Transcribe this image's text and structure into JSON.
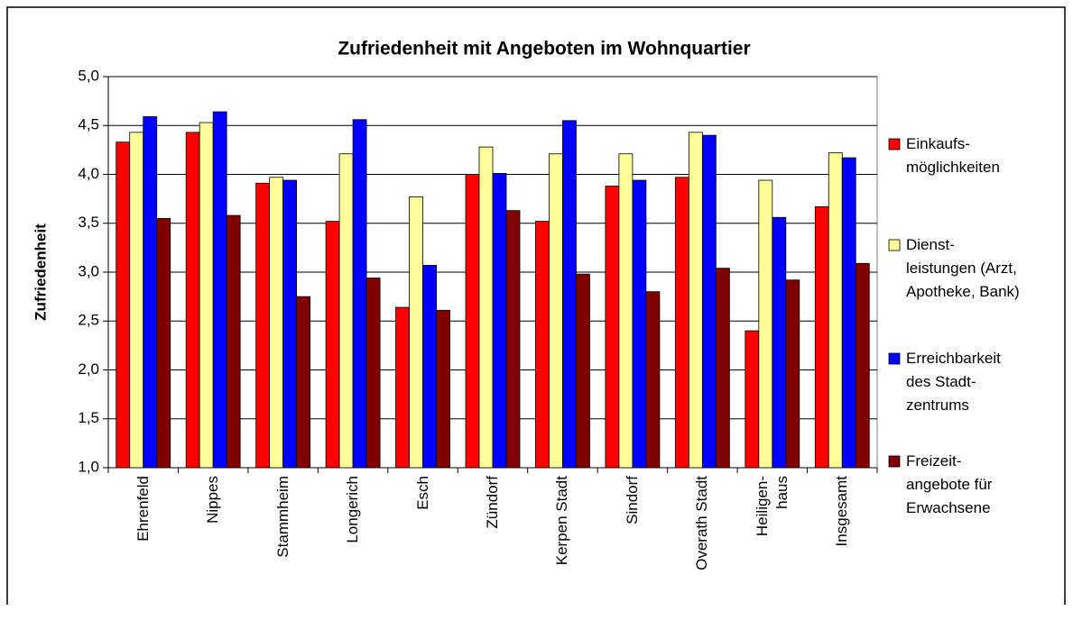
{
  "chart_data": {
    "type": "bar",
    "title": "Zufriedenheit mit Angeboten im Wohnquartier",
    "y_label": "Zufriedenheit",
    "categories": [
      "Ehrenfeld",
      "Nippes",
      "Stammheim",
      "Longerich",
      "Esch",
      "Zündorf",
      "Kerpen Stadt",
      "Sindorf",
      "Overath Stadt",
      "Heiligen-\nhaus",
      "Insgesamt"
    ],
    "series": [
      {
        "name": "Einkaufs-\nmöglichkeiten",
        "color": "#ff0000",
        "values": [
          4.33,
          4.43,
          3.91,
          3.52,
          2.64,
          4.0,
          3.52,
          3.88,
          3.97,
          2.4,
          3.67
        ]
      },
      {
        "name": "Dienst-\nleistungen (Arzt,\nApotheke, Bank)",
        "color": "#ffff99",
        "values": [
          4.43,
          4.53,
          3.97,
          4.21,
          3.77,
          4.28,
          4.21,
          4.21,
          4.43,
          3.94,
          4.22
        ]
      },
      {
        "name": "Erreichbarkeit\ndes Stadt-\nzentrums",
        "color": "#0000ff",
        "values": [
          4.59,
          4.64,
          3.94,
          4.56,
          3.07,
          4.01,
          4.55,
          3.94,
          4.4,
          3.56,
          4.17
        ]
      },
      {
        "name": "Freizeit-\nangebote für\nErwachsene",
        "color": "#800000",
        "values": [
          3.55,
          3.58,
          2.75,
          2.94,
          2.61,
          3.63,
          2.98,
          2.8,
          3.04,
          2.92,
          3.09
        ]
      }
    ],
    "ylim": [
      1,
      5
    ],
    "yticks": [
      {
        "value": 1,
        "label": "1,0"
      },
      {
        "value": 1.5,
        "label": "1,5"
      },
      {
        "value": 2,
        "label": "2,0"
      },
      {
        "value": 2.5,
        "label": "2,5"
      },
      {
        "value": 3,
        "label": "3,0"
      },
      {
        "value": 3.5,
        "label": "3,5"
      },
      {
        "value": 4,
        "label": "4,0"
      },
      {
        "value": 4.5,
        "label": "4,5"
      },
      {
        "value": 5,
        "label": "5,0"
      }
    ],
    "grid": true,
    "legend": "right"
  }
}
